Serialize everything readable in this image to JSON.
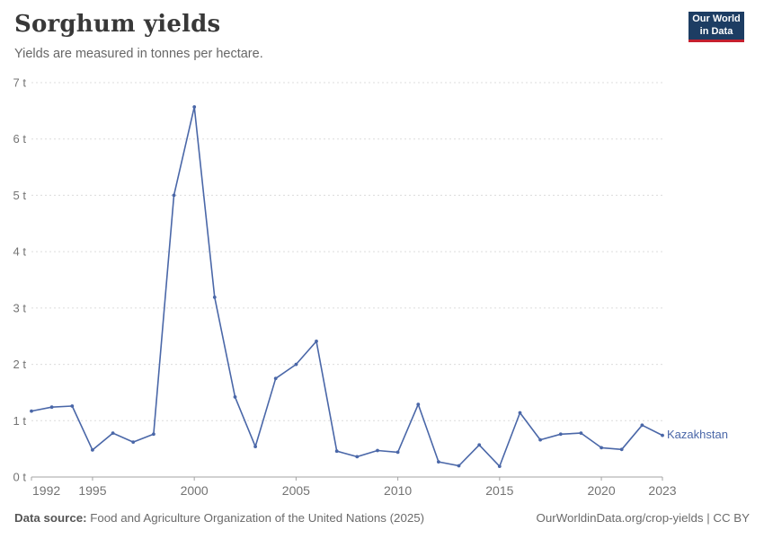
{
  "header": {
    "title": "Sorghum yields",
    "subtitle": "Yields are measured in tonnes per hectare."
  },
  "logo": {
    "line1": "Our World",
    "line2": "in Data",
    "bg_color": "#1d3d63",
    "accent_color": "#c5202e"
  },
  "footer": {
    "source_label": "Data source:",
    "source_text": "Food and Agriculture Organization of the United Nations (2025)",
    "link_text": "OurWorldinData.org/crop-yields | CC BY"
  },
  "chart_data": {
    "type": "line",
    "title": "Sorghum yields",
    "subtitle": "Yields are measured in tonnes per hectare.",
    "unit": "tonnes per hectare",
    "x": [
      1992,
      1993,
      1994,
      1995,
      1996,
      1997,
      1998,
      1999,
      2000,
      2001,
      2002,
      2003,
      2004,
      2005,
      2006,
      2007,
      2008,
      2009,
      2010,
      2011,
      2012,
      2013,
      2014,
      2015,
      2016,
      2017,
      2018,
      2019,
      2020,
      2021,
      2022,
      2023
    ],
    "series": [
      {
        "name": "Kazakhstan",
        "color": "#4a67a8",
        "values": [
          1.17,
          1.24,
          1.26,
          0.48,
          0.78,
          0.62,
          0.76,
          5.0,
          6.57,
          3.19,
          1.42,
          0.54,
          1.75,
          2.0,
          2.41,
          0.46,
          0.36,
          0.47,
          0.44,
          1.29,
          0.27,
          0.2,
          0.57,
          0.19,
          1.14,
          0.66,
          0.76,
          0.78,
          0.52,
          0.49,
          0.92,
          0.74
        ]
      }
    ],
    "ylim": [
      0,
      7
    ],
    "yticks": [
      0,
      1,
      2,
      3,
      4,
      5,
      6,
      7
    ],
    "ytick_labels": [
      "0 t",
      "1 t",
      "2 t",
      "3 t",
      "4 t",
      "5 t",
      "6 t",
      "7 t"
    ],
    "xticks": [
      1992,
      1995,
      2000,
      2005,
      2010,
      2015,
      2020,
      2023
    ],
    "grid": "horizontal-dashed",
    "grid_color": "#dcdcdc",
    "axis_color": "#a3a3a3",
    "tick_label_color": "#737373",
    "legend_position": "end-of-line"
  }
}
